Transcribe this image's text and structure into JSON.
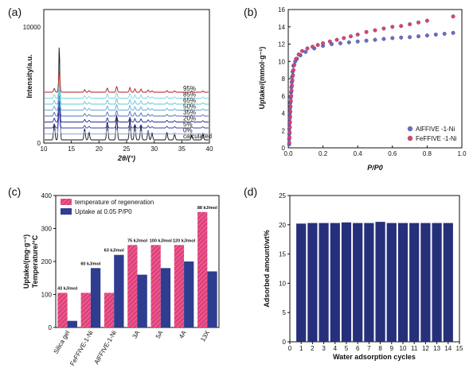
{
  "colors": {
    "pink": "#e0407a",
    "pink_light": "#e86a98",
    "navy": "#2e3d8f",
    "navy_dark": "#26307a",
    "purple": "#6b6bd0",
    "annot_blue": "#3399cc",
    "black": "#111111"
  },
  "chart_data": [
    {
      "panel": "(a)",
      "type": "line",
      "xlabel": "2θ/(°)",
      "ylabel": "Intensity/a.u.",
      "xlim": [
        10,
        40
      ],
      "x_ticks": [
        10,
        15,
        20,
        25,
        30,
        35,
        40
      ],
      "y_ticks": [
        "0",
        "10000"
      ],
      "series": [
        {
          "name": "calculated"
        },
        {
          "name": "0%"
        },
        {
          "name": "5%"
        },
        {
          "name": "20%"
        },
        {
          "name": "35%"
        },
        {
          "name": "50%"
        },
        {
          "name": "65%"
        },
        {
          "name": "85%"
        },
        {
          "name": "95%"
        }
      ],
      "peaks": [
        {
          "x": 11.9,
          "h": 0.18
        },
        {
          "x": 12.8,
          "h": 1.0
        },
        {
          "x": 17.4,
          "h": 0.12
        },
        {
          "x": 18.2,
          "h": 0.08
        },
        {
          "x": 21.5,
          "h": 0.2
        },
        {
          "x": 23.2,
          "h": 0.27
        },
        {
          "x": 25.6,
          "h": 0.22
        },
        {
          "x": 26.5,
          "h": 0.16
        },
        {
          "x": 27.6,
          "h": 0.15
        },
        {
          "x": 28.9,
          "h": 0.1
        },
        {
          "x": 29.6,
          "h": 0.07
        },
        {
          "x": 32.3,
          "h": 0.08
        },
        {
          "x": 33.7,
          "h": 0.06
        },
        {
          "x": 36.8,
          "h": 0.05
        },
        {
          "x": 38.8,
          "h": 0.06
        }
      ]
    },
    {
      "panel": "(b)",
      "type": "scatter",
      "xlabel": "P/P0",
      "ylabel": "Uptake/(mmol·g⁻¹)",
      "xlim": [
        0,
        1.0
      ],
      "ylim": [
        0,
        16
      ],
      "x_ticks": [
        "0.0",
        "0.2",
        "0.4",
        "0.6",
        "0.8",
        "1.0"
      ],
      "y_ticks": [
        "0",
        "2",
        "4",
        "6",
        "8",
        "10",
        "12",
        "14",
        "16"
      ],
      "legend": "bottom-right",
      "series": [
        {
          "name": "AlFFIVE -1-Ni",
          "color": "#6b6bd0",
          "x": [
            0.005,
            0.005,
            0.006,
            0.006,
            0.007,
            0.008,
            0.009,
            0.01,
            0.012,
            0.014,
            0.016,
            0.018,
            0.02,
            0.022,
            0.025,
            0.03,
            0.04,
            0.05,
            0.07,
            0.1,
            0.15,
            0.2,
            0.25,
            0.3,
            0.35,
            0.4,
            0.45,
            0.5,
            0.55,
            0.6,
            0.65,
            0.7,
            0.75,
            0.8,
            0.85,
            0.9,
            0.95
          ],
          "y": [
            0.4,
            1.0,
            1.6,
            2.2,
            2.8,
            3.4,
            4.0,
            4.6,
            5.2,
            5.8,
            6.4,
            7.0,
            7.6,
            8.2,
            8.8,
            9.5,
            10.0,
            10.3,
            10.7,
            11.1,
            11.5,
            11.8,
            12.0,
            12.1,
            12.2,
            12.3,
            12.4,
            12.5,
            12.6,
            12.7,
            12.75,
            12.8,
            12.9,
            13.0,
            13.1,
            13.2,
            13.3
          ]
        },
        {
          "name": "FeFFIVE -1-Ni",
          "color": "#e0407a",
          "x": [
            0.006,
            0.007,
            0.008,
            0.009,
            0.01,
            0.011,
            0.012,
            0.013,
            0.015,
            0.017,
            0.019,
            0.021,
            0.024,
            0.027,
            0.03,
            0.035,
            0.045,
            0.06,
            0.08,
            0.11,
            0.14,
            0.17,
            0.2,
            0.24,
            0.28,
            0.32,
            0.36,
            0.4,
            0.45,
            0.5,
            0.55,
            0.6,
            0.65,
            0.7,
            0.75,
            0.8,
            0.95
          ],
          "y": [
            0.6,
            1.2,
            1.8,
            2.4,
            3.0,
            3.6,
            4.2,
            4.8,
            5.4,
            6.0,
            6.6,
            7.2,
            7.8,
            8.4,
            9.0,
            9.6,
            10.3,
            10.8,
            11.2,
            11.5,
            11.7,
            11.9,
            12.1,
            12.3,
            12.5,
            12.7,
            12.9,
            13.1,
            13.4,
            13.6,
            13.8,
            14.0,
            14.1,
            14.3,
            14.5,
            14.7,
            15.2
          ]
        }
      ]
    },
    {
      "panel": "(c)",
      "type": "bar",
      "ylabel_line1": "Uptake/(mg·g⁻¹)",
      "ylabel_line2": "Temperature/°C",
      "ylim": [
        0,
        400
      ],
      "y_ticks": [
        "0",
        "100",
        "200",
        "300",
        "400"
      ],
      "categories": [
        "Silica gel",
        "FeFFIVE-1-Ni",
        "AlFFIVE-1-Ni",
        "3A",
        "5A",
        "4A",
        "13X"
      ],
      "series": [
        {
          "name": "temperature of regeneration",
          "color": "#e0407a",
          "values": [
            105,
            105,
            105,
            250,
            250,
            250,
            350
          ]
        },
        {
          "name": "Uptake at 0.05 P/P0",
          "color": "#2e3d8f",
          "values": [
            20,
            180,
            220,
            160,
            180,
            200,
            170
          ]
        }
      ],
      "annotations": [
        "43 kJ/mol",
        "60 kJ/mol",
        "63 kJ/mol",
        "75 kJ/mol",
        "100 kJ/mol",
        "120 kJ/mol",
        "88 kJ/mol"
      ]
    },
    {
      "panel": "(d)",
      "type": "bar",
      "xlabel": "Water adsorption cycles",
      "ylabel": "Adsorbed amount/wt%",
      "xlim": [
        0,
        15
      ],
      "ylim": [
        0,
        25
      ],
      "x_ticks": [
        "0",
        "1",
        "2",
        "3",
        "4",
        "5",
        "6",
        "7",
        "8",
        "9",
        "10",
        "11",
        "12",
        "13",
        "14",
        "15"
      ],
      "y_ticks": [
        "0",
        "5",
        "10",
        "15",
        "20",
        "25"
      ],
      "categories": [
        1,
        2,
        3,
        4,
        5,
        6,
        7,
        8,
        9,
        10,
        11,
        12,
        13,
        14
      ],
      "values": [
        20.2,
        20.3,
        20.3,
        20.3,
        20.4,
        20.3,
        20.3,
        20.5,
        20.3,
        20.3,
        20.3,
        20.3,
        20.3,
        20.3
      ]
    }
  ]
}
